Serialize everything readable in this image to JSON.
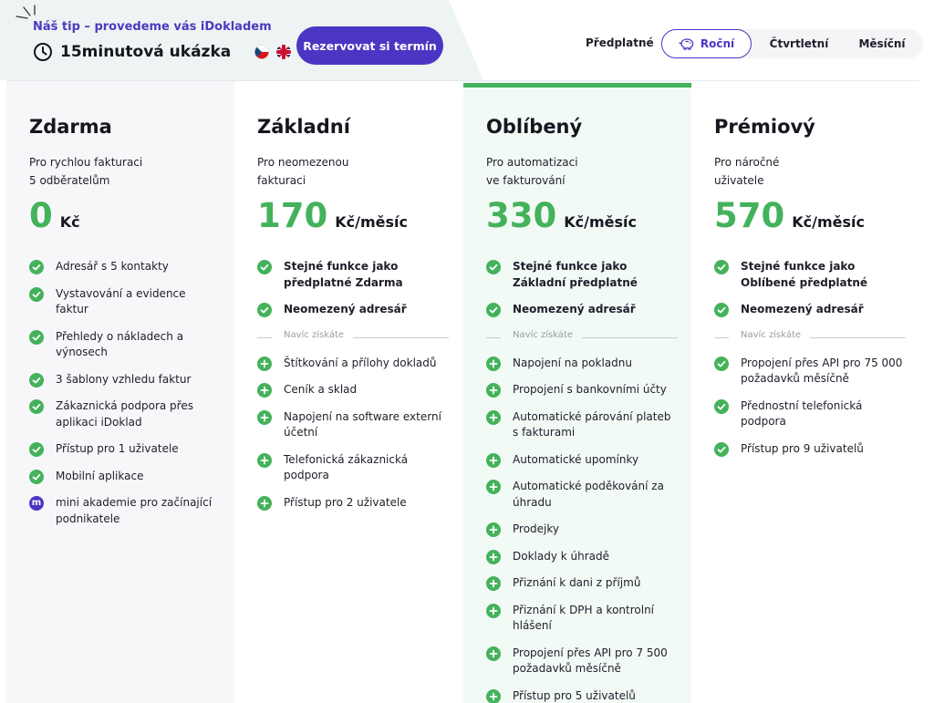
{
  "promo": {
    "tip": "Náš tip – provedeme vás iDokladem",
    "title": "15minutová ukázka",
    "cta": "Rezervovat si termín"
  },
  "billing": {
    "label": "Předplatné",
    "options": [
      "Roční",
      "Čtvrtletní",
      "Měsíční"
    ],
    "selected": "Roční"
  },
  "colors": {
    "accent": "#4b36c4",
    "green": "#44b25b"
  },
  "plans": [
    {
      "name": "Zdarma",
      "desc": [
        "Pro rychlou fakturaci",
        "5 odběratelům"
      ],
      "price": "0",
      "unit": "Kč",
      "features": [
        {
          "text": "Adresář s 5 kontakty",
          "icon": "check"
        },
        {
          "text": "Vystavování a evidence faktur",
          "icon": "check"
        },
        {
          "text": "Přehledy o nákladech a výnosech",
          "icon": "check"
        },
        {
          "text": "3 šablony vzhledu faktur",
          "icon": "check"
        },
        {
          "text": "Zákaznická podpora přes aplikaci iDoklad",
          "icon": "check"
        },
        {
          "text": "Přístup pro 1 uživatele",
          "icon": "check"
        },
        {
          "text": "Mobilní aplikace",
          "icon": "check"
        },
        {
          "text": "mini akademie pro začínající podnikatele",
          "icon": "m"
        }
      ]
    },
    {
      "name": "Základní",
      "desc": [
        "Pro neomezenou",
        "fakturaci"
      ],
      "price": "170",
      "unit": "Kč/měsíc",
      "bold_features": [
        "Stejné funkce jako předplatné Zdarma",
        "Neomezený adresář"
      ],
      "extra_label": "Navíc získáte",
      "features": [
        "Štítkování a přílohy dokladů",
        "Ceník a sklad",
        "Napojení na software externí účetní",
        "Telefonická zákaznická podpora",
        "Přístup pro 2 uživatele"
      ]
    },
    {
      "name": "Oblíbený",
      "desc": [
        "Pro automatizaci",
        "ve fakturování"
      ],
      "price": "330",
      "unit": "Kč/měsíc",
      "bold_features": [
        "Stejné funkce jako Základní předplatné",
        "Neomezený adresář"
      ],
      "extra_label": "Navíc získáte",
      "features": [
        "Napojení na pokladnu",
        "Propojení s bankovními účty",
        "Automatické párování plateb s fakturami",
        "Automatické upomínky",
        "Automatické poděkování za úhradu",
        "Prodejky",
        "Doklady k úhradě",
        "Přiznání k dani z příjmů",
        "Přiznání k DPH a kontrolní hlášení",
        "Propojení přes API pro 7 500 požadavků měsíčně",
        "Přístup pro 5 uživatelů"
      ]
    },
    {
      "name": "Prémiový",
      "desc": [
        "Pro náročné",
        "uživatele"
      ],
      "price": "570",
      "unit": "Kč/měsíc",
      "bold_features": [
        "Stejné funkce jako Oblíbené předplatné",
        "Neomezený adresář"
      ],
      "extra_label": "Navíc získáte",
      "features": [
        "Propojení přes API pro 75 000 požadavků měsíčně",
        "Přednostní telefonická podpora",
        "Přístup pro 9 uživatelů"
      ]
    }
  ]
}
